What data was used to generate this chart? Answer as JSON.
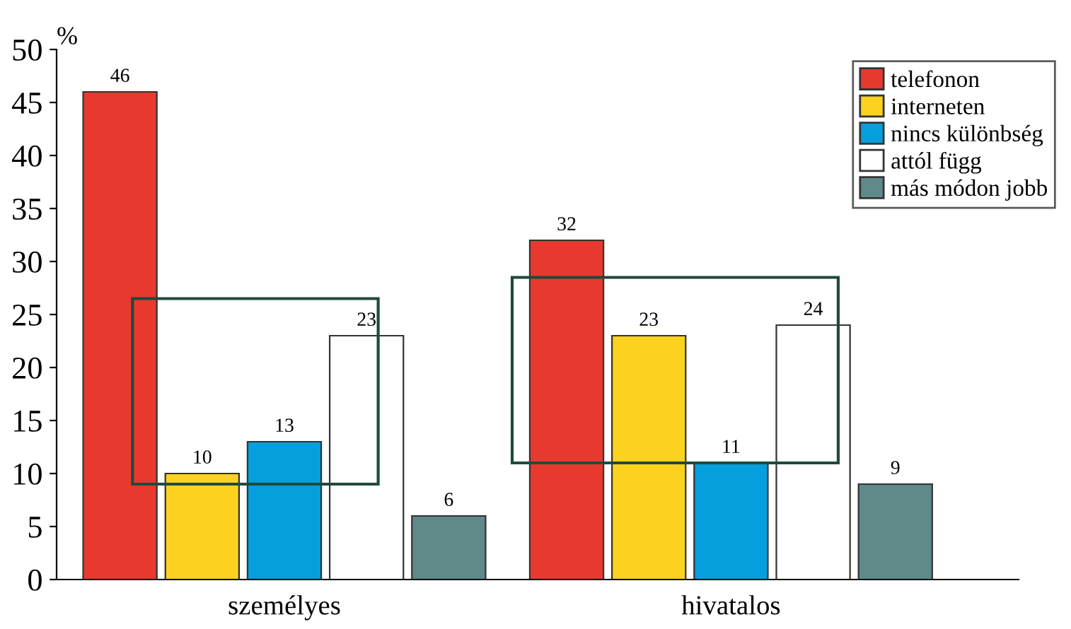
{
  "chart_data": {
    "type": "bar",
    "ylabel": "%",
    "categories": [
      "személyes",
      "hivatalos"
    ],
    "series": [
      {
        "name": "telefonon",
        "color": "#e8392f",
        "values": [
          46,
          32
        ]
      },
      {
        "name": "interneten",
        "color": "#fcd21f",
        "values": [
          10,
          23
        ]
      },
      {
        "name": "nincs különbség",
        "color": "#049fdc",
        "values": [
          13,
          11
        ]
      },
      {
        "name": "attól függ",
        "color": "#ffffff",
        "values": [
          23,
          24
        ]
      },
      {
        "name": "más módon jobb",
        "color": "#5f8a89",
        "values": [
          6,
          9
        ]
      }
    ],
    "ylim": [
      0,
      50
    ],
    "yticks": [
      0,
      5,
      10,
      15,
      20,
      25,
      30,
      35,
      40,
      45,
      50
    ],
    "data_labels": true,
    "legend": "top right",
    "grid": false
  }
}
